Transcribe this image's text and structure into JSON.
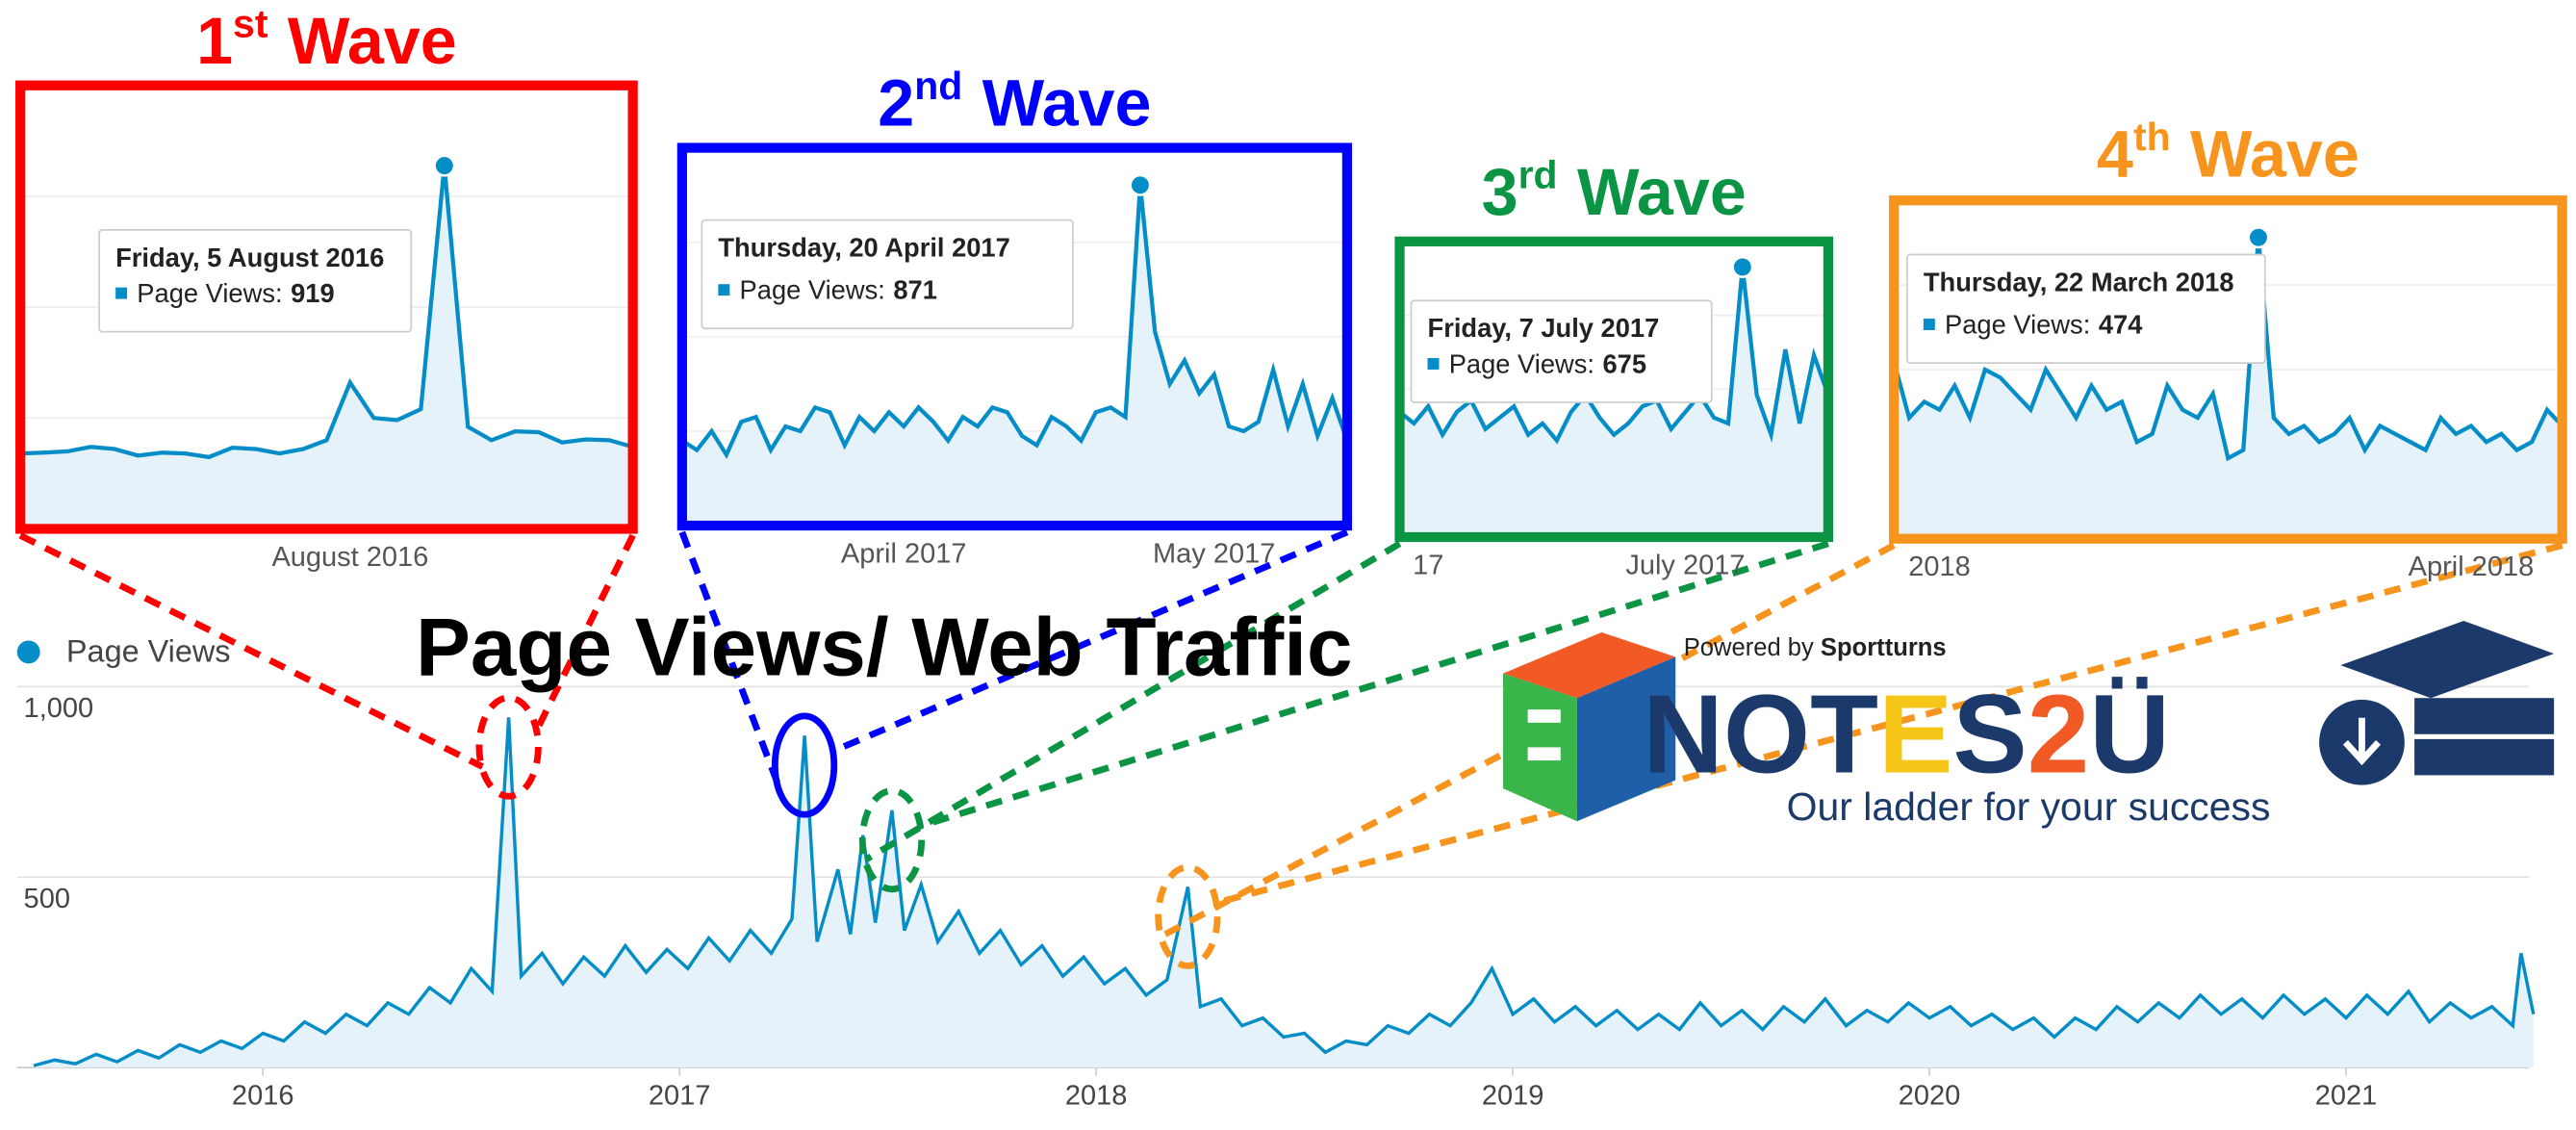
{
  "chart_data": [
    {
      "type": "line",
      "title": "Page Views/ Web Traffic",
      "x": [
        2015.45,
        2015.5,
        2015.55,
        2015.6,
        2015.65,
        2015.7,
        2015.75,
        2015.8,
        2015.85,
        2015.9,
        2015.95,
        2016,
        2016.05,
        2016.1,
        2016.15,
        2016.2,
        2016.25,
        2016.3,
        2016.35,
        2016.4,
        2016.45,
        2016.5,
        2016.55,
        2016.59,
        2016.62,
        2016.67,
        2016.72,
        2016.77,
        2016.82,
        2016.87,
        2016.92,
        2016.97,
        2017.02,
        2017.07,
        2017.12,
        2017.17,
        2017.22,
        2017.27,
        2017.3,
        2017.33,
        2017.38,
        2017.41,
        2017.44,
        2017.47,
        2017.51,
        2017.54,
        2017.58,
        2017.62,
        2017.67,
        2017.72,
        2017.77,
        2017.82,
        2017.87,
        2017.92,
        2017.97,
        2018.02,
        2018.07,
        2018.12,
        2018.17,
        2018.22,
        2018.25,
        2018.3,
        2018.35,
        2018.4,
        2018.45,
        2018.5,
        2018.55,
        2018.6,
        2018.65,
        2018.7,
        2018.75,
        2018.8,
        2018.85,
        2018.9,
        2018.95,
        2019,
        2019.05,
        2019.1,
        2019.15,
        2019.2,
        2019.25,
        2019.3,
        2019.35,
        2019.4,
        2019.45,
        2019.5,
        2019.55,
        2019.6,
        2019.65,
        2019.7,
        2019.75,
        2019.8,
        2019.85,
        2019.9,
        2019.95,
        2020,
        2020.05,
        2020.1,
        2020.15,
        2020.2,
        2020.25,
        2020.3,
        2020.35,
        2020.4,
        2020.45,
        2020.5,
        2020.55,
        2020.6,
        2020.65,
        2020.7,
        2020.75,
        2020.8,
        2020.85,
        2020.9,
        2020.95,
        2021,
        2021.05,
        2021.1,
        2021.15,
        2021.2,
        2021.25,
        2021.3,
        2021.35,
        2021.4,
        2021.42,
        2021.45
      ],
      "series": [
        {
          "name": "Page Views",
          "color": "#058dc7",
          "values": [
            5,
            20,
            10,
            35,
            15,
            45,
            25,
            60,
            40,
            70,
            50,
            90,
            70,
            120,
            90,
            140,
            110,
            170,
            140,
            210,
            170,
            260,
            200,
            919,
            240,
            300,
            220,
            290,
            240,
            320,
            250,
            310,
            260,
            340,
            280,
            360,
            300,
            390,
            871,
            330,
            520,
            350,
            610,
            380,
            675,
            360,
            480,
            330,
            410,
            300,
            360,
            270,
            320,
            240,
            290,
            220,
            260,
            190,
            230,
            474,
            160,
            180,
            110,
            130,
            80,
            90,
            40,
            70,
            60,
            110,
            90,
            140,
            110,
            170,
            260,
            140,
            180,
            120,
            160,
            110,
            150,
            100,
            140,
            100,
            170,
            110,
            150,
            100,
            160,
            120,
            180,
            110,
            150,
            120,
            170,
            130,
            160,
            110,
            140,
            100,
            130,
            80,
            130,
            100,
            160,
            120,
            170,
            130,
            190,
            140,
            180,
            130,
            190,
            140,
            180,
            130,
            190,
            140,
            200,
            120,
            170,
            130,
            160,
            110,
            300,
            140
          ]
        }
      ],
      "xlim": [
        2015.41,
        2021.44
      ],
      "xticks": [
        2016,
        2017,
        2018,
        2019,
        2020,
        2021
      ],
      "ylim": [
        0,
        1000
      ],
      "yticks": [
        500,
        {
          "value": 1000,
          "label": "1,000"
        }
      ],
      "grid": true
    },
    {
      "type": "line",
      "title": {
        "number": "1",
        "ordinal": "st",
        "word": "Wave"
      },
      "color": "#ff0000",
      "tooltip": {
        "date": "Friday, 5 August 2016",
        "label": "Page Views:"
      },
      "series": [
        {
          "name": "Page Views",
          "color": "#058dc7",
          "values": [
            270,
            272,
            275,
            285,
            280,
            265,
            272,
            270,
            262,
            283,
            280,
            270,
            280,
            300,
            430,
            350,
            345,
            370,
            919,
            330,
            300,
            320,
            318,
            295,
            302,
            300,
            285
          ]
        }
      ],
      "xlim": [
        0,
        26
      ],
      "xticks": [
        {
          "value": 14,
          "label": "August 2016"
        }
      ],
      "ylim": [
        100,
        1100
      ]
    },
    {
      "type": "line",
      "title": {
        "number": "2",
        "ordinal": "nd",
        "word": "Wave"
      },
      "color": "#0000ff",
      "tooltip": {
        "date": "Thursday, 20 April 2017",
        "label": "Page Views:"
      },
      "series": [
        {
          "name": "Page Views",
          "color": "#058dc7",
          "values": [
            330,
            310,
            350,
            300,
            370,
            380,
            310,
            360,
            350,
            400,
            390,
            320,
            380,
            350,
            390,
            360,
            400,
            370,
            330,
            380,
            360,
            400,
            390,
            340,
            320,
            380,
            360,
            330,
            390,
            400,
            380,
            871,
            560,
            450,
            500,
            430,
            470,
            360,
            350,
            370,
            480,
            360,
            450,
            340,
            420,
            330
          ]
        }
      ],
      "xlim": [
        0,
        45
      ],
      "xticks": [
        {
          "value": 15,
          "label": "April 2017"
        },
        {
          "value": 36,
          "label": "May 2017"
        }
      ],
      "ylim": [
        150,
        950
      ]
    },
    {
      "type": "line",
      "title": {
        "number": "3",
        "ordinal": "rd",
        "word": "Wave"
      },
      "color": "#0b9444",
      "tooltip": {
        "date": "Friday, 7 July 2017",
        "label": "Page Views:"
      },
      "series": [
        {
          "name": "Page Views",
          "color": "#058dc7",
          "values": [
            420,
            400,
            430,
            380,
            420,
            440,
            390,
            410,
            430,
            380,
            400,
            370,
            420,
            450,
            410,
            380,
            400,
            430,
            440,
            390,
            420,
            450,
            410,
            400,
            675,
            450,
            380,
            530,
            400,
            520,
            450
          ]
        }
      ],
      "xlim": [
        0,
        30
      ],
      "xticks": [
        {
          "value": 2,
          "label": "17"
        },
        {
          "value": 20,
          "label": "July 2017"
        }
      ],
      "ylim": [
        200,
        720
      ]
    },
    {
      "type": "line",
      "title": {
        "number": "4",
        "ordinal": "th",
        "word": "Wave"
      },
      "color": "#f7941d",
      "tooltip": {
        "date": "Thursday, 22 March 2018",
        "label": "Page Views:"
      },
      "series": [
        {
          "name": "Page Views",
          "color": "#058dc7",
          "values": [
            320,
            250,
            270,
            260,
            290,
            250,
            310,
            300,
            280,
            260,
            310,
            280,
            250,
            290,
            260,
            270,
            220,
            230,
            290,
            260,
            250,
            280,
            200,
            210,
            474,
            250,
            230,
            240,
            220,
            230,
            250,
            210,
            240,
            230,
            220,
            210,
            250,
            230,
            240,
            220,
            230,
            210,
            220,
            260,
            240
          ]
        }
      ],
      "xlim": [
        0,
        44
      ],
      "xticks": [
        {
          "value": 3,
          "label": "2018"
        },
        {
          "value": 38,
          "label": "April 2018"
        }
      ],
      "ylim": [
        100,
        520
      ]
    }
  ],
  "logo": {
    "powered_by": "Powered by",
    "brand": "Sportturns",
    "wordmark": [
      "NOT",
      "E",
      "S",
      "2",
      "Ü"
    ],
    "tagline": "Our ladder for your success"
  }
}
